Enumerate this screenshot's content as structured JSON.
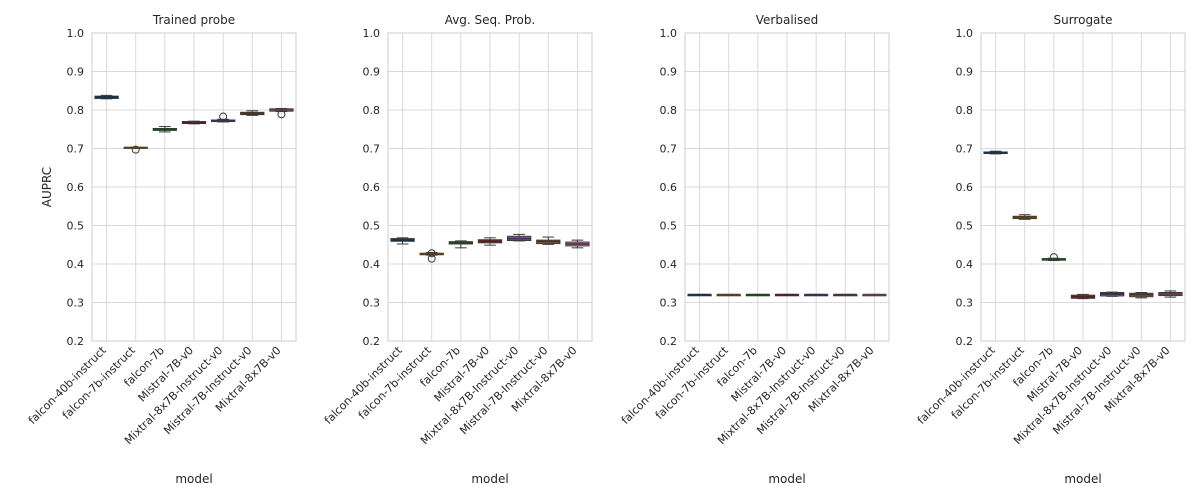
{
  "chart_data": [
    {
      "type": "box",
      "title": "Trained probe",
      "xlabel": "model",
      "ylabel": "AUPRC",
      "ylim": [
        0.2,
        1.0
      ],
      "yticks": [
        "0.2",
        "0.3",
        "0.4",
        "0.5",
        "0.6",
        "0.7",
        "0.8",
        "0.9",
        "1.0"
      ],
      "grid": true,
      "categories": [
        "falcon-40b-instruct",
        "falcon-7b-instruct",
        "falcon-7b",
        "Mistral-7B-v0",
        "Mixtral-8x7B-Instruct-v0",
        "Mistral-7B-Instruct-v0",
        "Mixtral-8x7B-v0"
      ],
      "boxes": [
        {
          "whislo": 0.829,
          "q1": 0.83,
          "med": 0.833,
          "q3": 0.836,
          "whishi": 0.838,
          "fliers": [],
          "color": "#3a6e9f"
        },
        {
          "whislo": 0.701,
          "q1": 0.701,
          "med": 0.702,
          "q3": 0.703,
          "whishi": 0.703,
          "fliers": [
            0.697
          ],
          "color": "#d68a3e"
        },
        {
          "whislo": 0.743,
          "q1": 0.747,
          "med": 0.75,
          "q3": 0.752,
          "whishi": 0.757,
          "fliers": [],
          "color": "#4c9a4c"
        },
        {
          "whislo": 0.764,
          "q1": 0.765,
          "med": 0.767,
          "q3": 0.77,
          "whishi": 0.771,
          "fliers": [],
          "color": "#b54a4a"
        },
        {
          "whislo": 0.769,
          "q1": 0.77,
          "med": 0.772,
          "q3": 0.774,
          "whishi": 0.776,
          "fliers": [
            0.783
          ],
          "color": "#8c6bb1"
        },
        {
          "whislo": 0.786,
          "q1": 0.788,
          "med": 0.791,
          "q3": 0.794,
          "whishi": 0.798,
          "fliers": [],
          "color": "#a7785a"
        },
        {
          "whislo": 0.796,
          "q1": 0.797,
          "med": 0.8,
          "q3": 0.803,
          "whishi": 0.804,
          "fliers": [
            0.789
          ],
          "color": "#d987b9"
        }
      ]
    },
    {
      "type": "box",
      "title": "Avg. Seq. Prob.",
      "xlabel": "model",
      "ylabel": "",
      "ylim": [
        0.2,
        1.0
      ],
      "yticks": [
        "0.2",
        "0.3",
        "0.4",
        "0.5",
        "0.6",
        "0.7",
        "0.8",
        "0.9",
        "1.0"
      ],
      "grid": true,
      "categories": [
        "falcon-40b-instruct",
        "falcon-7b-instruct",
        "falcon-7b",
        "Mistral-7B-v0",
        "Mixtral-8x7B-Instruct-v0",
        "Mistral-7B-Instruct-v0",
        "Mixtral-8x7B-v0"
      ],
      "boxes": [
        {
          "whislo": 0.452,
          "q1": 0.459,
          "med": 0.462,
          "q3": 0.466,
          "whishi": 0.468,
          "fliers": [],
          "color": "#3a6e9f"
        },
        {
          "whislo": 0.423,
          "q1": 0.424,
          "med": 0.426,
          "q3": 0.428,
          "whishi": 0.43,
          "fliers": [
            0.414,
            0.428
          ],
          "color": "#d68a3e"
        },
        {
          "whislo": 0.442,
          "q1": 0.452,
          "med": 0.455,
          "q3": 0.458,
          "whishi": 0.46,
          "fliers": [],
          "color": "#4c9a4c"
        },
        {
          "whislo": 0.449,
          "q1": 0.455,
          "med": 0.459,
          "q3": 0.463,
          "whishi": 0.468,
          "fliers": [],
          "color": "#b54a4a"
        },
        {
          "whislo": 0.46,
          "q1": 0.461,
          "med": 0.466,
          "q3": 0.472,
          "whishi": 0.477,
          "fliers": [],
          "color": "#8c6bb1"
        },
        {
          "whislo": 0.451,
          "q1": 0.453,
          "med": 0.458,
          "q3": 0.462,
          "whishi": 0.47,
          "fliers": [],
          "color": "#a7785a"
        },
        {
          "whislo": 0.442,
          "q1": 0.447,
          "med": 0.452,
          "q3": 0.457,
          "whishi": 0.462,
          "fliers": [],
          "color": "#d987b9"
        }
      ]
    },
    {
      "type": "box",
      "title": "Verbalised",
      "xlabel": "model",
      "ylabel": "",
      "ylim": [
        0.2,
        1.0
      ],
      "yticks": [
        "0.2",
        "0.3",
        "0.4",
        "0.5",
        "0.6",
        "0.7",
        "0.8",
        "0.9",
        "1.0"
      ],
      "grid": true,
      "categories": [
        "falcon-40b-instruct",
        "falcon-7b-instruct",
        "falcon-7b",
        "Mistral-7B-v0",
        "Mixtral-8x7B-Instruct-v0",
        "Mistral-7B-Instruct-v0",
        "Mixtral-8x7B-v0"
      ],
      "boxes": [
        {
          "whislo": 0.319,
          "q1": 0.319,
          "med": 0.32,
          "q3": 0.32,
          "whishi": 0.321,
          "fliers": [],
          "color": "#3a6e9f"
        },
        {
          "whislo": 0.319,
          "q1": 0.319,
          "med": 0.32,
          "q3": 0.32,
          "whishi": 0.321,
          "fliers": [],
          "color": "#d68a3e"
        },
        {
          "whislo": 0.319,
          "q1": 0.319,
          "med": 0.32,
          "q3": 0.32,
          "whishi": 0.321,
          "fliers": [],
          "color": "#4c9a4c"
        },
        {
          "whislo": 0.319,
          "q1": 0.319,
          "med": 0.32,
          "q3": 0.32,
          "whishi": 0.321,
          "fliers": [],
          "color": "#b54a4a"
        },
        {
          "whislo": 0.319,
          "q1": 0.319,
          "med": 0.32,
          "q3": 0.32,
          "whishi": 0.321,
          "fliers": [],
          "color": "#8c6bb1"
        },
        {
          "whislo": 0.319,
          "q1": 0.319,
          "med": 0.32,
          "q3": 0.32,
          "whishi": 0.321,
          "fliers": [],
          "color": "#a7785a"
        },
        {
          "whislo": 0.319,
          "q1": 0.319,
          "med": 0.32,
          "q3": 0.32,
          "whishi": 0.321,
          "fliers": [],
          "color": "#d987b9"
        }
      ]
    },
    {
      "type": "box",
      "title": "Surrogate",
      "xlabel": "model",
      "ylabel": "",
      "ylim": [
        0.2,
        1.0
      ],
      "yticks": [
        "0.2",
        "0.3",
        "0.4",
        "0.5",
        "0.6",
        "0.7",
        "0.8",
        "0.9",
        "1.0"
      ],
      "grid": true,
      "categories": [
        "falcon-40b-instruct",
        "falcon-7b-instruct",
        "falcon-7b",
        "Mistral-7B-v0",
        "Mixtral-8x7B-Instruct-v0",
        "Mistral-7B-Instruct-v0",
        "Mixtral-8x7B-v0"
      ],
      "boxes": [
        {
          "whislo": 0.686,
          "q1": 0.687,
          "med": 0.689,
          "q3": 0.691,
          "whishi": 0.693,
          "fliers": [],
          "color": "#3a6e9f"
        },
        {
          "whislo": 0.516,
          "q1": 0.518,
          "med": 0.521,
          "q3": 0.524,
          "whishi": 0.528,
          "fliers": [],
          "color": "#d68a3e"
        },
        {
          "whislo": 0.409,
          "q1": 0.41,
          "med": 0.412,
          "q3": 0.414,
          "whishi": 0.415,
          "fliers": [
            0.418
          ],
          "color": "#4c9a4c"
        },
        {
          "whislo": 0.31,
          "q1": 0.311,
          "med": 0.315,
          "q3": 0.319,
          "whishi": 0.321,
          "fliers": [],
          "color": "#b54a4a"
        },
        {
          "whislo": 0.316,
          "q1": 0.317,
          "med": 0.322,
          "q3": 0.326,
          "whishi": 0.327,
          "fliers": [],
          "color": "#8c6bb1"
        },
        {
          "whislo": 0.312,
          "q1": 0.315,
          "med": 0.32,
          "q3": 0.324,
          "whishi": 0.326,
          "fliers": [],
          "color": "#a7785a"
        },
        {
          "whislo": 0.314,
          "q1": 0.318,
          "med": 0.322,
          "q3": 0.326,
          "whishi": 0.33,
          "fliers": [],
          "color": "#d987b9"
        }
      ]
    }
  ]
}
